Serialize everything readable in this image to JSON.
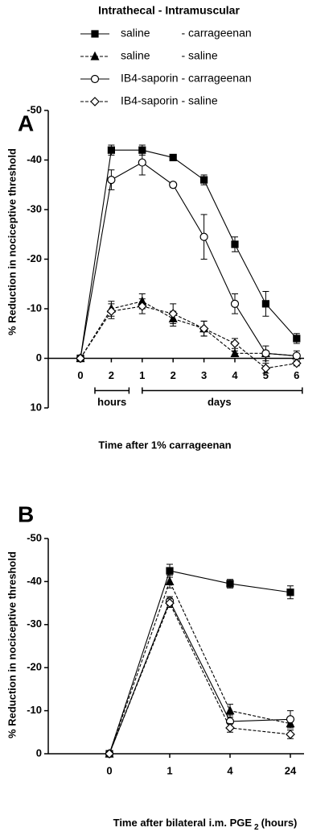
{
  "chart_data": [
    {
      "type": "line",
      "panel_label": "A",
      "legend_title": "Intrathecal - Intramuscular",
      "y_label": "% Reduction in nociceptive threshold",
      "x_label": "Time after 1% carrageenan",
      "annotations": [
        "hours",
        "days"
      ],
      "categories": [
        "0",
        "2",
        "1",
        "2",
        "3",
        "4",
        "5",
        "6"
      ],
      "ylim": [
        -50,
        10
      ],
      "yticks": [
        -50,
        -40,
        -30,
        -20,
        -10,
        0,
        10
      ],
      "series": [
        {
          "name": "saline          - carrageenan",
          "color": "#000000",
          "marker": "square",
          "fill": "#000000",
          "dash": false,
          "values": [
            0,
            -42,
            -42,
            -40.5,
            -36,
            -23,
            -11,
            -4
          ],
          "errors": [
            0,
            1,
            1,
            0.5,
            1,
            1.5,
            2.5,
            1
          ]
        },
        {
          "name": "saline          - saline",
          "color": "#000000",
          "marker": "triangle",
          "fill": "#000000",
          "dash": true,
          "values": [
            0,
            -10,
            -11.5,
            -8,
            -6,
            -1,
            -1,
            -0.5
          ],
          "errors": [
            0,
            1.5,
            1.5,
            1.5,
            1.5,
            0.5,
            0.5,
            0.5
          ]
        },
        {
          "name": "IB4-saporin - carrageenan",
          "color": "#000000",
          "marker": "circle",
          "fill": "#ffffff",
          "dash": false,
          "values": [
            0,
            -36,
            -39.5,
            -35,
            -24.5,
            -11,
            -1,
            -0.5
          ],
          "errors": [
            0,
            2,
            2.5,
            0.5,
            4.5,
            2,
            1.5,
            1
          ]
        },
        {
          "name": "IB4-saporin - saline",
          "color": "#000000",
          "marker": "diamond",
          "fill": "#ffffff",
          "dash": true,
          "values": [
            0,
            -9.5,
            -10.5,
            -9,
            -6,
            -3,
            2,
            1
          ],
          "errors": [
            0,
            1.5,
            1.5,
            2,
            1.5,
            1,
            1,
            0.5
          ]
        }
      ]
    },
    {
      "type": "line",
      "panel_label": "B",
      "y_label": "% Reduction in nociceptive threshold",
      "x_label": [
        "Time after bilateral i.m. PGE",
        "2",
        "(hours)"
      ],
      "categories": [
        "0",
        "1",
        "4",
        "24"
      ],
      "ylim": [
        -50,
        0
      ],
      "yticks": [
        -50,
        -40,
        -30,
        -20,
        -10,
        0
      ],
      "series": [
        {
          "color": "#000000",
          "marker": "square",
          "fill": "#000000",
          "dash": false,
          "values": [
            0,
            -42.5,
            -39.5,
            -37.5
          ],
          "errors": [
            0,
            1.5,
            1,
            1.5
          ]
        },
        {
          "color": "#000000",
          "marker": "triangle",
          "fill": "#000000",
          "dash": true,
          "values": [
            0,
            -40,
            -10,
            -7
          ],
          "errors": [
            0,
            1.5,
            1.5,
            1
          ]
        },
        {
          "color": "#000000",
          "marker": "circle",
          "fill": "#ffffff",
          "dash": false,
          "values": [
            0,
            -35.5,
            -7.5,
            -8
          ],
          "errors": [
            0,
            1,
            1.5,
            2
          ]
        },
        {
          "color": "#000000",
          "marker": "diamond",
          "fill": "#ffffff",
          "dash": true,
          "values": [
            0,
            -35,
            -6,
            -4.5
          ],
          "errors": [
            0,
            1,
            1,
            1
          ]
        }
      ]
    }
  ]
}
